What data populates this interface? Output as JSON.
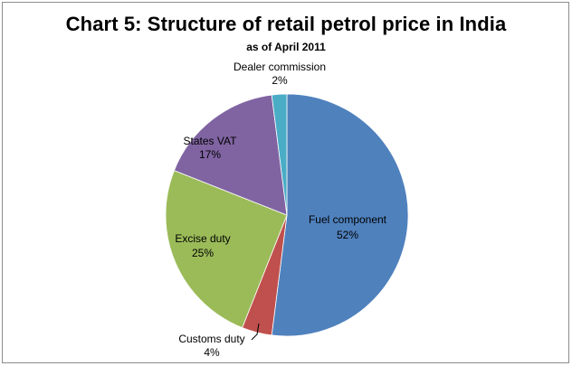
{
  "chart_data": {
    "type": "pie",
    "title": "Chart 5: Structure of retail petrol price in India",
    "subtitle": "as of April 2011",
    "slices": [
      {
        "name": "Fuel component",
        "value": 52,
        "label": "52%",
        "color": "#4F81BD"
      },
      {
        "name": "Customs duty",
        "value": 4,
        "label": "4%",
        "color": "#C0504D"
      },
      {
        "name": "Excise duty",
        "value": 25,
        "label": "25%",
        "color": "#9BBB59"
      },
      {
        "name": "States VAT",
        "value": 17,
        "label": "17%",
        "color": "#8064A2"
      },
      {
        "name": "Dealer commission",
        "value": 2,
        "label": "2%",
        "color": "#4BACC6"
      }
    ],
    "start_angle_deg": 0,
    "direction": "clockwise",
    "legend": "none",
    "labels": "category-and-percent"
  }
}
